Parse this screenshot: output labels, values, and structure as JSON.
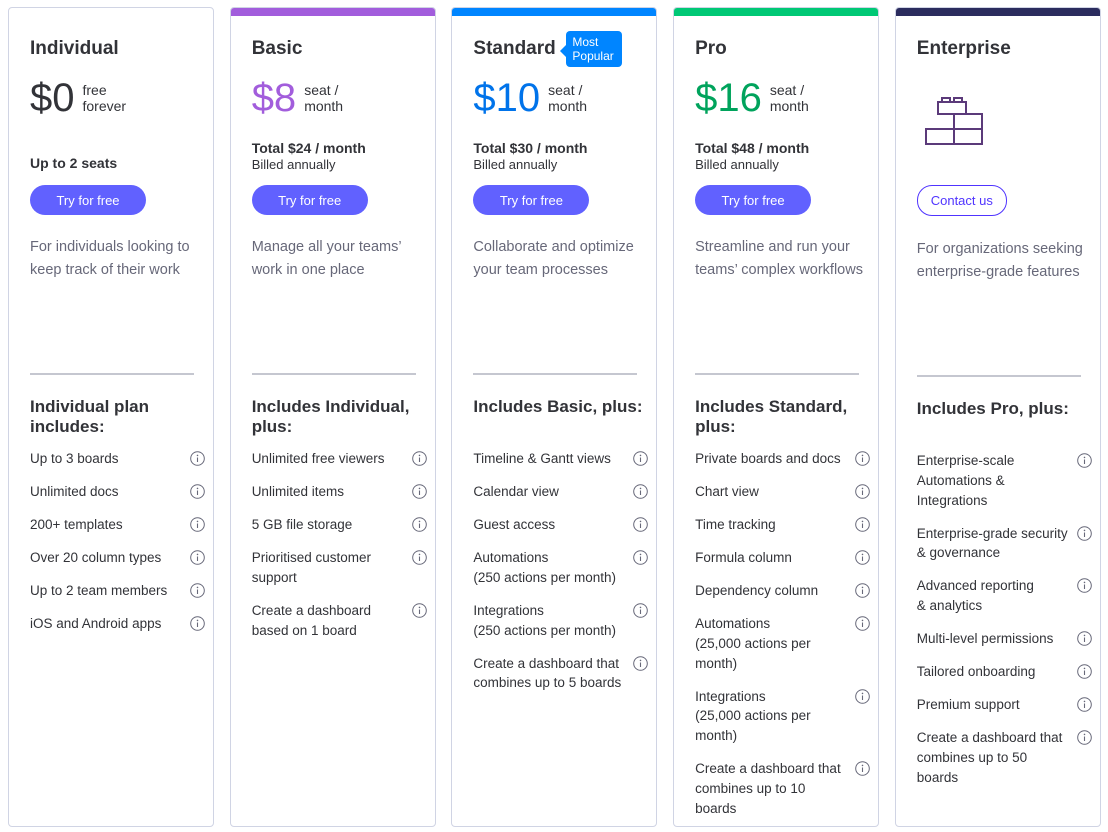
{
  "plans": [
    {
      "name": "Individual",
      "price": "$0",
      "price_note": "free\nforever",
      "seats": "Up to 2 seats",
      "cta": "Try for free",
      "description": "For individuals looking to keep track of their work",
      "includes_title": "Individual plan includes:",
      "features": [
        "Up to 3 boards",
        "Unlimited docs",
        "200+ templates",
        "Over 20 column types",
        "Up to 2 team members",
        "iOS and Android apps"
      ]
    },
    {
      "name": "Basic",
      "price": "$8",
      "price_note": "seat /\nmonth",
      "total": "Total $24 / month",
      "billed": "Billed annually",
      "cta": "Try for free",
      "description": "Manage all your teams’ work in one place",
      "includes_title": "Includes Individual, plus:",
      "features": [
        "Unlimited free viewers",
        "Unlimited items",
        "5 GB file storage",
        "Prioritised customer support",
        "Create a dashboard based on 1 board"
      ]
    },
    {
      "name": "Standard",
      "badge": "Most Popular",
      "price": "$10",
      "price_note": "seat /\nmonth",
      "total": "Total $30 / month",
      "billed": "Billed annually",
      "cta": "Try for free",
      "description": "Collaborate and optimize your team processes",
      "includes_title": "Includes Basic, plus:",
      "features": [
        "Timeline & Gantt views",
        "Calendar view",
        "Guest access",
        "Automations\n(250 actions per month)",
        "Integrations\n(250 actions per month)",
        "Create a dashboard that combines up to 5 boards"
      ]
    },
    {
      "name": "Pro",
      "price": "$16",
      "price_note": "seat /\nmonth",
      "total": "Total $48 / month",
      "billed": "Billed annually",
      "cta": "Try for free",
      "description": "Streamline and run your teams’ complex workflows",
      "includes_title": "Includes Standard, plus:",
      "features": [
        "Private boards and docs",
        "Chart view",
        "Time tracking",
        "Formula column",
        "Dependency column",
        "Automations\n(25,000 actions per month)",
        "Integrations\n(25,000 actions per month)",
        "Create a dashboard that combines up to 10 boards"
      ]
    },
    {
      "name": "Enterprise",
      "cta": "Contact us",
      "description": "For organizations seeking enterprise-grade features",
      "includes_title": "Includes Pro, plus:",
      "features": [
        "Enterprise-scale Automations & Integrations",
        "Enterprise-grade security\n& governance",
        "Advanced reporting\n& analytics",
        "Multi-level permissions",
        "Tailored onboarding",
        "Premium support",
        "Create a dashboard that combines up to 50 boards"
      ]
    }
  ]
}
